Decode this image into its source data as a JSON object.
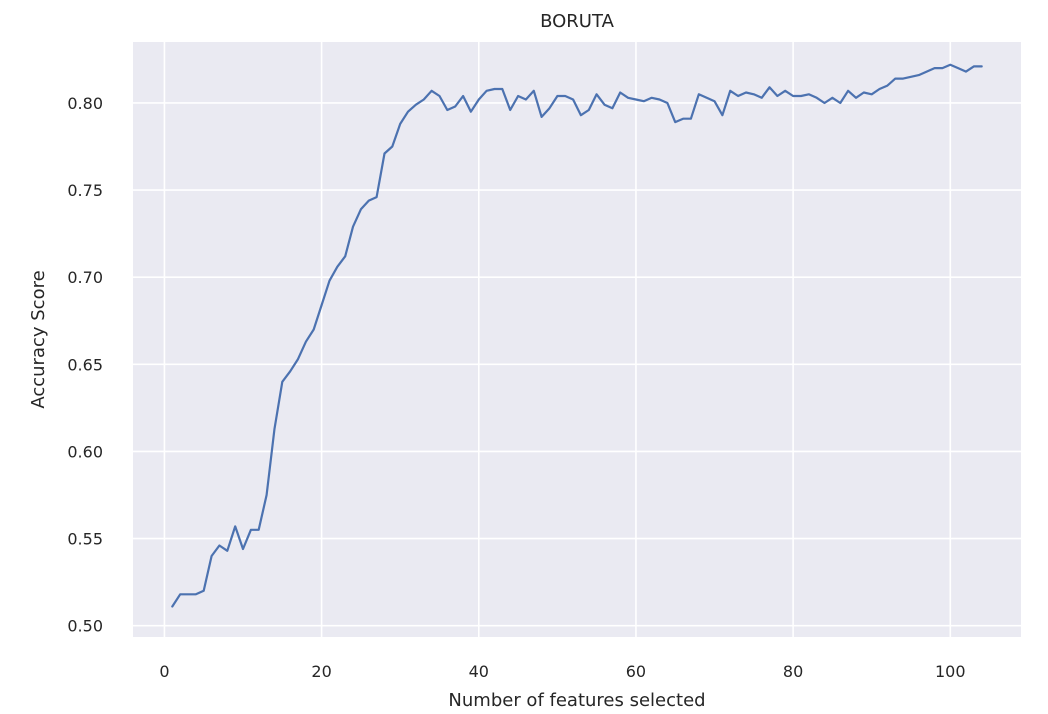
{
  "chart_data": {
    "type": "line",
    "title": "BORUTA",
    "xlabel": "Number of features selected",
    "ylabel": "Accuracy Score",
    "xlim": [
      -4,
      109
    ],
    "ylim": [
      0.4935,
      0.835
    ],
    "grid": true,
    "background": "#eaeaf2",
    "grid_color": "#ffffff",
    "line_color": "#4c72b0",
    "x_ticks": [
      0,
      20,
      40,
      60,
      80,
      100
    ],
    "x_tick_labels": [
      "0",
      "20",
      "40",
      "60",
      "80",
      "100"
    ],
    "y_ticks": [
      0.5,
      0.55,
      0.6,
      0.65,
      0.7,
      0.75,
      0.8
    ],
    "y_tick_labels": [
      "0.50",
      "0.55",
      "0.60",
      "0.65",
      "0.70",
      "0.75",
      "0.80"
    ],
    "series": [
      {
        "x": [
          1,
          2,
          3,
          4,
          5,
          6,
          7,
          8,
          9,
          10,
          11,
          12,
          13,
          14,
          15,
          16,
          17,
          18,
          19,
          20,
          21,
          22,
          23,
          24,
          25,
          26,
          27,
          28,
          29,
          30,
          31,
          32,
          33,
          34,
          35,
          36,
          37,
          38,
          39,
          40,
          41,
          42,
          43,
          44,
          45,
          46,
          47,
          48,
          49,
          50,
          51,
          52,
          53,
          54,
          55,
          56,
          57,
          58,
          59,
          60,
          61,
          62,
          63,
          64,
          65,
          66,
          67,
          68,
          69,
          70,
          71,
          72,
          73,
          74,
          75,
          76,
          77,
          78,
          79,
          80,
          81,
          82,
          83,
          84,
          85,
          86,
          87,
          88,
          89,
          90,
          91,
          92,
          93,
          94,
          95,
          96,
          97,
          98,
          99,
          100,
          101,
          102,
          103,
          104
        ],
        "values": [
          0.511,
          0.518,
          0.518,
          0.518,
          0.52,
          0.54,
          0.546,
          0.543,
          0.557,
          0.544,
          0.555,
          0.555,
          0.575,
          0.613,
          0.64,
          0.646,
          0.653,
          0.663,
          0.67,
          0.684,
          0.698,
          0.706,
          0.712,
          0.729,
          0.739,
          0.744,
          0.746,
          0.771,
          0.775,
          0.788,
          0.795,
          0.799,
          0.802,
          0.807,
          0.804,
          0.796,
          0.798,
          0.804,
          0.795,
          0.802,
          0.807,
          0.808,
          0.808,
          0.796,
          0.804,
          0.802,
          0.807,
          0.792,
          0.797,
          0.804,
          0.804,
          0.802,
          0.793,
          0.796,
          0.805,
          0.799,
          0.797,
          0.806,
          0.803,
          0.802,
          0.801,
          0.803,
          0.802,
          0.8,
          0.789,
          0.791,
          0.791,
          0.805,
          0.803,
          0.801,
          0.793,
          0.807,
          0.804,
          0.806,
          0.805,
          0.803,
          0.809,
          0.804,
          0.807,
          0.804,
          0.804,
          0.805,
          0.803,
          0.8,
          0.803,
          0.8,
          0.807,
          0.803,
          0.806,
          0.805,
          0.808,
          0.81,
          0.814,
          0.814,
          0.815,
          0.816,
          0.818,
          0.82,
          0.82,
          0.822,
          0.82,
          0.818,
          0.821,
          0.821
        ]
      }
    ]
  }
}
